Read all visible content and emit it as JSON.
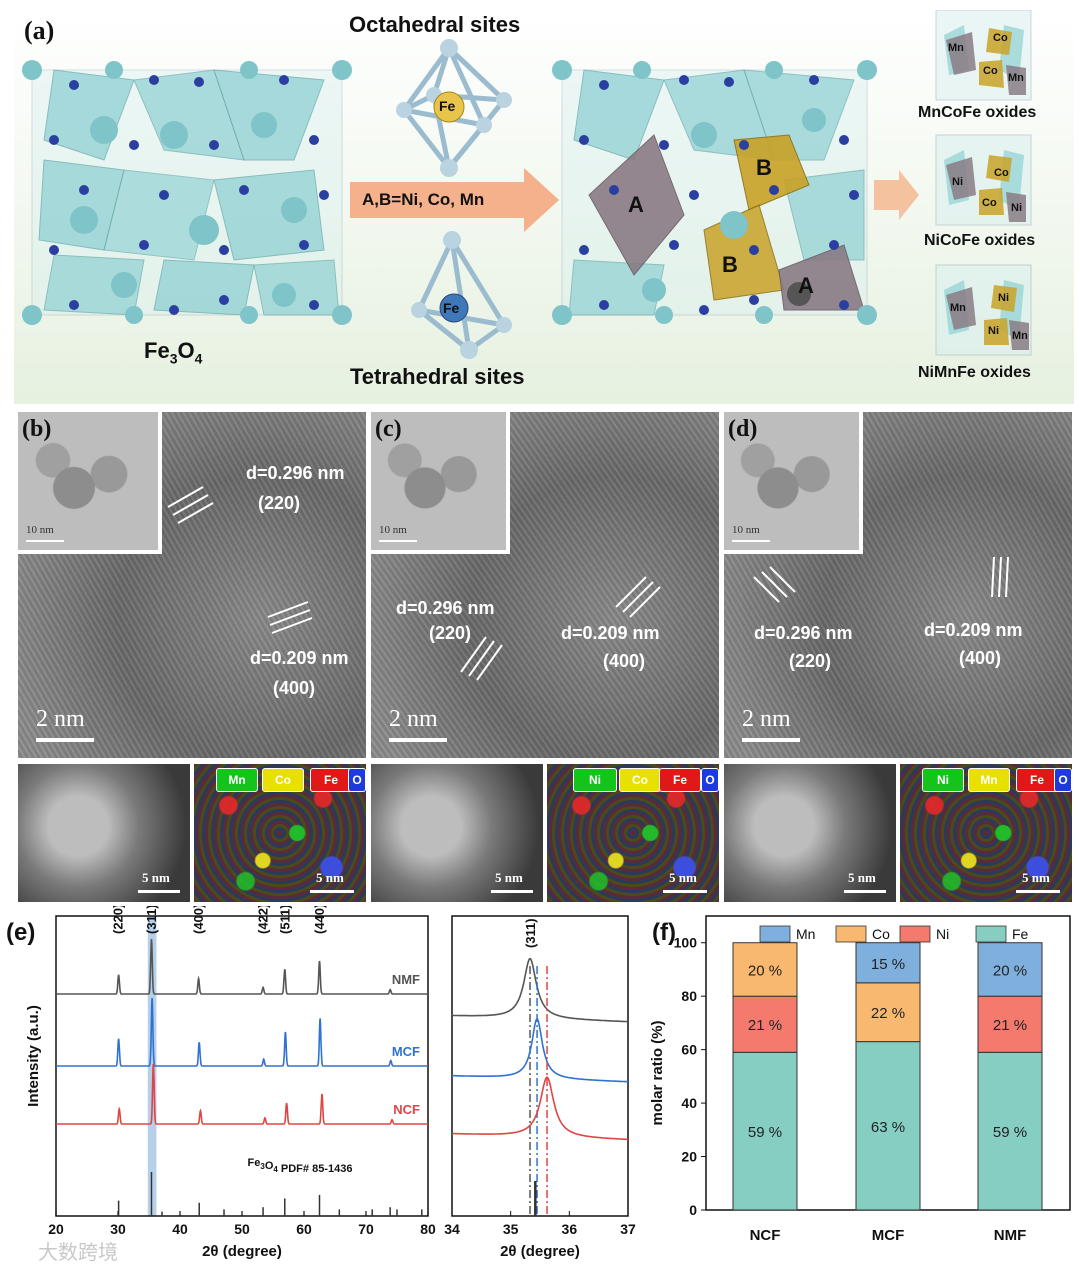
{
  "panel_a": {
    "label": "(a)",
    "left_title": "Fe3O4",
    "left_title_main": "Fe",
    "left_title_sub1": "3",
    "left_title_o": "O",
    "left_title_sub2": "4",
    "octa_title": "Octahedral sites",
    "tetra_title": "Tetrahedral sites",
    "octa_center": "Fe",
    "tetra_center": "Fe",
    "arrow_text": "A,B=Ni, Co, Mn",
    "site_labels": [
      "A",
      "B",
      "B",
      "A"
    ],
    "oxides": [
      {
        "name": "MnCoFe oxides",
        "ions": [
          "Mn",
          "Co",
          "Co",
          "Mn"
        ]
      },
      {
        "name": "NiCoFe oxides",
        "ions": [
          "Ni",
          "Co",
          "Co",
          "Ni"
        ]
      },
      {
        "name": "NiMnFe oxides",
        "ions": [
          "Mn",
          "Ni",
          "Ni",
          "Mn"
        ]
      }
    ],
    "colors": {
      "background": "#e9f3e4",
      "polyhedra": "#8fd0d3",
      "cation": "#7fc4c9",
      "oxygen": "#2a3fa0",
      "siteA": "#8a7b85",
      "siteB": "#c9a227",
      "arrow": "#f4a97f"
    }
  },
  "tem_panels": [
    {
      "label": "(b)",
      "inset_scale": "10 nm",
      "main_scale": "2 nm",
      "d1": "d=0.296 nm",
      "h1": "(220)",
      "d2": "d=0.209 nm",
      "h2": "(400)",
      "eds": [
        "Mn",
        "Co",
        "Fe",
        "O"
      ],
      "eds_colors": [
        "#13c51b",
        "#e8e000",
        "#e01818",
        "#1e3adf"
      ],
      "haadf_scale": "5 nm",
      "map_scale": "5 nm"
    },
    {
      "label": "(c)",
      "inset_scale": "10 nm",
      "main_scale": "2 nm",
      "d1": "d=0.296 nm",
      "h1": "(220)",
      "d2": "d=0.209 nm",
      "h2": "(400)",
      "eds": [
        "Ni",
        "Co",
        "Fe",
        "O"
      ],
      "eds_colors": [
        "#13c51b",
        "#e8e000",
        "#e01818",
        "#1e3adf"
      ],
      "haadf_scale": "5 nm",
      "map_scale": "5 nm"
    },
    {
      "label": "(d)",
      "inset_scale": "10 nm",
      "main_scale": "2 nm",
      "d1": "d=0.296 nm",
      "h1": "(220)",
      "d2": "d=0.209 nm",
      "h2": "(400)",
      "eds": [
        "Ni",
        "Mn",
        "Fe",
        "O"
      ],
      "eds_colors": [
        "#13c51b",
        "#e8e000",
        "#e01818",
        "#1e3adf"
      ],
      "haadf_scale": "5 nm",
      "map_scale": "5 nm"
    }
  ],
  "chart_data": [
    {
      "panel": "(e)",
      "type": "line",
      "xlabel": "2θ (degree)",
      "ylabel": "Intensity (a.u.)",
      "xlim": [
        20,
        80
      ],
      "xticks": [
        20,
        30,
        40,
        50,
        60,
        70,
        80
      ],
      "peak_labels": [
        {
          "x": 30.1,
          "label": "(220)"
        },
        {
          "x": 35.5,
          "label": "(311)"
        },
        {
          "x": 43.1,
          "label": "(400)"
        },
        {
          "x": 53.5,
          "label": "(422)"
        },
        {
          "x": 57.0,
          "label": "(511)"
        },
        {
          "x": 62.6,
          "label": "(440)"
        }
      ],
      "series": [
        {
          "name": "NMF",
          "color": "#555555",
          "peaks": [
            {
              "x": 30.1,
              "h": 0.35
            },
            {
              "x": 35.4,
              "h": 1.0
            },
            {
              "x": 43.0,
              "h": 0.28
            },
            {
              "x": 53.4,
              "h": 0.12
            },
            {
              "x": 56.9,
              "h": 0.45
            },
            {
              "x": 62.5,
              "h": 0.6
            },
            {
              "x": 73.9,
              "h": 0.08
            }
          ]
        },
        {
          "name": "MCF",
          "color": "#2f72d4",
          "peaks": [
            {
              "x": 30.1,
              "h": 0.4
            },
            {
              "x": 35.5,
              "h": 1.0
            },
            {
              "x": 43.1,
              "h": 0.35
            },
            {
              "x": 53.5,
              "h": 0.1
            },
            {
              "x": 57.0,
              "h": 0.5
            },
            {
              "x": 62.6,
              "h": 0.7
            },
            {
              "x": 74.0,
              "h": 0.08
            }
          ]
        },
        {
          "name": "NCF",
          "color": "#e04545",
          "peaks": [
            {
              "x": 30.2,
              "h": 0.25
            },
            {
              "x": 35.7,
              "h": 1.0
            },
            {
              "x": 43.3,
              "h": 0.22
            },
            {
              "x": 53.7,
              "h": 0.1
            },
            {
              "x": 57.2,
              "h": 0.35
            },
            {
              "x": 62.9,
              "h": 0.5
            },
            {
              "x": 74.2,
              "h": 0.07
            }
          ]
        }
      ],
      "reference": {
        "name": "Fe3O4 PDF# 85-1436",
        "name_main": "Fe",
        "name_sub1": "3",
        "name_o": "O",
        "name_sub2": "4",
        "name_rest": " PDF# 85-1436",
        "lines": [
          {
            "x": 30.1,
            "h": 0.35
          },
          {
            "x": 35.4,
            "h": 1.0
          },
          {
            "x": 37.1,
            "h": 0.1
          },
          {
            "x": 43.1,
            "h": 0.3
          },
          {
            "x": 47.1,
            "h": 0.15
          },
          {
            "x": 53.4,
            "h": 0.2
          },
          {
            "x": 56.9,
            "h": 0.4
          },
          {
            "x": 62.5,
            "h": 0.48
          },
          {
            "x": 65.7,
            "h": 0.15
          },
          {
            "x": 71.0,
            "h": 0.15
          },
          {
            "x": 73.9,
            "h": 0.2
          },
          {
            "x": 75.0,
            "h": 0.15
          },
          {
            "x": 79.0,
            "h": 0.15
          }
        ]
      },
      "highlight_band": [
        34.8,
        36.2
      ]
    },
    {
      "panel": "(e) zoom",
      "type": "line",
      "xlabel": "2θ (degree)",
      "xlim": [
        34,
        37
      ],
      "xticks": [
        34,
        35,
        36,
        37
      ],
      "peak_label": "(311)",
      "series": [
        {
          "name": "NMF",
          "color": "#555555",
          "center": 35.33,
          "width": 0.13
        },
        {
          "name": "MCF",
          "color": "#2f72d4",
          "center": 35.45,
          "width": 0.11
        },
        {
          "name": "NCF",
          "color": "#e04545",
          "center": 35.62,
          "width": 0.14
        }
      ],
      "markers": [
        35.33,
        35.45,
        35.62
      ]
    },
    {
      "panel": "(f)",
      "type": "bar",
      "ylabel": "molar ratio (%)",
      "categories": [
        "NCF",
        "MCF",
        "NMF"
      ],
      "ylim": [
        0,
        110
      ],
      "yticks": [
        0,
        20,
        40,
        60,
        80,
        100
      ],
      "legend": [
        "Mn",
        "Co",
        "Ni",
        "Fe"
      ],
      "series": [
        {
          "name": "Fe",
          "color": "#86cdc2",
          "values": [
            59,
            63,
            59
          ],
          "labels": [
            "59 %",
            "63 %",
            "59 %"
          ]
        },
        {
          "name": "Ni",
          "color": "#f47a6e",
          "values": [
            21,
            0,
            21
          ],
          "labels": [
            "21 %",
            "",
            "21 %"
          ]
        },
        {
          "name": "Co",
          "color": "#f9b870",
          "values": [
            20,
            22,
            0
          ],
          "labels": [
            "20 %",
            "22 %",
            ""
          ]
        },
        {
          "name": "Mn",
          "color": "#7fb0dd",
          "values": [
            0,
            15,
            20
          ],
          "labels": [
            "",
            "15 %",
            "20 %"
          ]
        }
      ]
    }
  ],
  "watermark": "大数跨境"
}
